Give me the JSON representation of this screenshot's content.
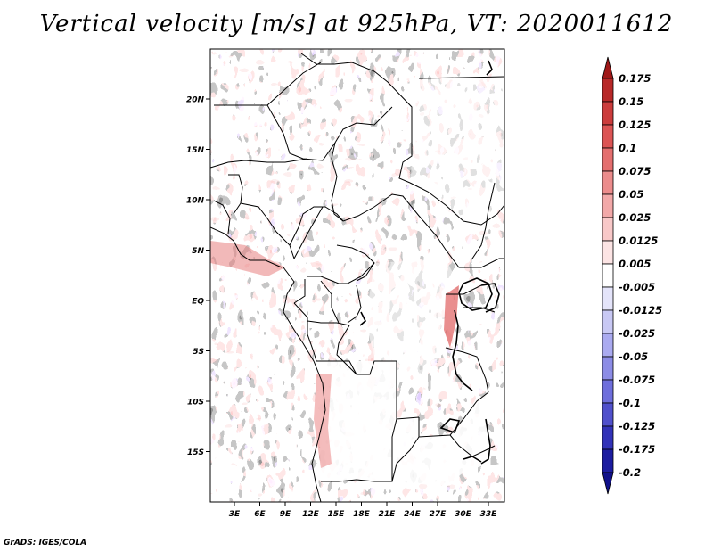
{
  "title": "Vertical velocity [m/s] at 925hPa, VT: 2020011612",
  "credit": "GrADS: IGES/COLA",
  "map": {
    "lat_labels": [
      "20N",
      "15N",
      "10N",
      "5N",
      "EQ",
      "5S",
      "10S",
      "15S"
    ],
    "lat_values": [
      20,
      15,
      10,
      5,
      0,
      -5,
      -10,
      -15
    ],
    "lon_labels": [
      "3E",
      "6E",
      "9E",
      "12E",
      "15E",
      "18E",
      "21E",
      "24E",
      "27E",
      "30E",
      "33E"
    ],
    "lon_values": [
      3,
      6,
      9,
      12,
      15,
      18,
      21,
      24,
      27,
      30,
      33
    ]
  },
  "colorbar": {
    "labels": [
      "0.175",
      "0.15",
      "0.125",
      "0.1",
      "0.075",
      "0.05",
      "0.025",
      "0.0125",
      "0.005",
      "-0.005",
      "-0.0125",
      "-0.025",
      "-0.05",
      "-0.075",
      "-0.1",
      "-0.125",
      "-0.175",
      "-0.2"
    ],
    "colors": [
      "#a01818",
      "#b82828",
      "#cc3c3c",
      "#dc5454",
      "#e46e6e",
      "#ec8c8c",
      "#f2a8a8",
      "#f8c8c8",
      "#fce4e4",
      "#ffffff",
      "#e4e4fa",
      "#c8c8f4",
      "#aaaaf0",
      "#8c8ce6",
      "#6e6edc",
      "#5050cc",
      "#3232b8",
      "#1c1ca0",
      "#10108a"
    ]
  }
}
